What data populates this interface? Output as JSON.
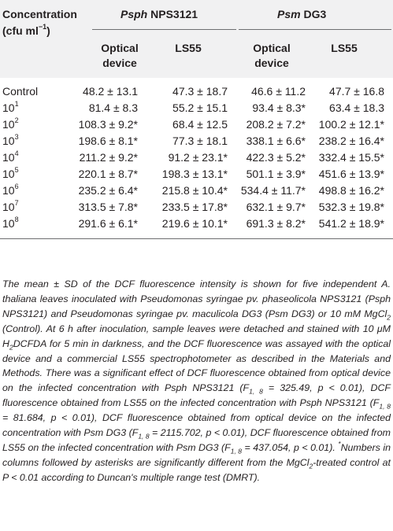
{
  "header": {
    "concentration_label": "Concentration",
    "units_prefix": "(cfu ml",
    "units_exp": "−1",
    "units_suffix": ")",
    "group1_name": "Psph",
    "group1_strain": " NPS3121",
    "group2_name": "Psm",
    "group2_strain": " DG3",
    "sub_optical_line1": "Optical",
    "sub_optical_line2": "device",
    "sub_ls55": "LS55"
  },
  "table": {
    "rows": [
      {
        "base": "Control",
        "exp": "",
        "values": [
          "48.2 ± 13.1",
          "47.3 ± 18.7",
          "46.6 ± 11.2",
          "47.7 ± 16.8"
        ]
      },
      {
        "base": "10",
        "exp": "1",
        "values": [
          "81.4 ± 8.3",
          "55.2 ± 15.1",
          "93.4 ± 8.3*",
          "63.4 ± 18.3"
        ]
      },
      {
        "base": "10",
        "exp": "2",
        "values": [
          "108.3 ± 9.2*",
          "68.4 ± 12.5",
          "208.2 ± 7.2*",
          "100.2 ± 12.1*"
        ]
      },
      {
        "base": "10",
        "exp": "3",
        "values": [
          "198.6 ± 8.1*",
          "77.3 ± 18.1",
          "338.1 ± 6.6*",
          "238.2 ± 16.4*"
        ]
      },
      {
        "base": "10",
        "exp": "4",
        "values": [
          "211.2 ± 9.2*",
          "91.2 ± 23.1*",
          "422.3 ± 5.2*",
          "332.4 ± 15.5*"
        ]
      },
      {
        "base": "10",
        "exp": "5",
        "values": [
          "220.1 ± 8.7*",
          "198.3 ± 13.1*",
          "501.1 ± 3.9*",
          "451.6 ± 13.9*"
        ]
      },
      {
        "base": "10",
        "exp": "6",
        "values": [
          "235.2 ± 6.4*",
          "215.8 ± 10.4*",
          "534.4 ± 11.7*",
          "498.8 ± 16.2*"
        ]
      },
      {
        "base": "10",
        "exp": "7",
        "values": [
          "313.5 ± 7.8*",
          "233.5 ± 17.8*",
          "632.1 ± 9.7*",
          "532.3 ± 19.8*"
        ]
      },
      {
        "base": "10",
        "exp": "8",
        "values": [
          "291.6 ± 6.1*",
          "219.6 ± 10.1*",
          "691.3 ± 8.2*",
          "541.2 ± 18.9*"
        ]
      }
    ]
  },
  "footnote": {
    "p1": "The mean ± SD of the DCF fluorescence intensity is shown for five independent A. thaliana leaves inoculated with Pseudomonas syringae pv. phaseolicola NPS3121 (Psph NPS3121) and Pseudomonas syringae pv. maculicola DG3 (Psm DG3) or 10 mM MgCl",
    "p1_sub": "2",
    "p2": " (Control). At 6 h after inoculation, sample leaves were detached and stained with 10 μM H",
    "p2_sub": "2",
    "p3": "DCFDA for 5 min in darkness, and the DCF fluorescence was assayed with the optical device and a commercial LS55 spectrophotometer as described in the Materials and Methods. There was a significant effect of DCF fluorescence obtained from optical device on the infected concentration with Psph NPS3121 (F",
    "f1_sub": "1, 8",
    "p4": " = 325.49, p < 0.01), DCF fluorescence obtained from LS55 on the infected concentration with Psph NPS3121 (F",
    "f2_sub": "1, 8",
    "p5": " = 81.684, p < 0.01), DCF fluorescence obtained from optical device on the infected concentration with Psm DG3 (F",
    "f3_sub": "1, 8",
    "p6": " = 2115.702, p < 0.01), DCF fluorescence obtained from LS55 on the infected concentration with Psm DG3 (F",
    "f4_sub": "1, 8",
    "p7": " = 437.054, p < 0.01). ",
    "star": "*",
    "p8": "Numbers in columns followed by asterisks are significantly different from the MgCl",
    "p8_sub": "2",
    "p9": "-treated control at P < 0.01 according to Duncan's multiple range test (DMRT)."
  }
}
